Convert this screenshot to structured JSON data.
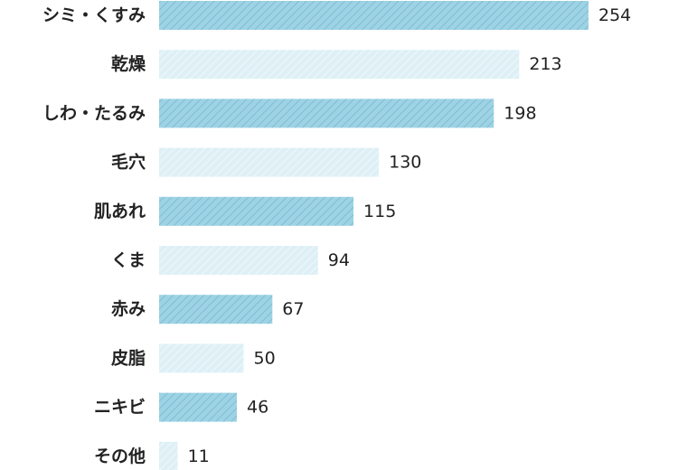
{
  "chart_data": {
    "type": "bar",
    "orientation": "horizontal",
    "categories": [
      "シミ・くすみ",
      "乾燥",
      "しわ・たるみ",
      "毛穴",
      "肌あれ",
      "くま",
      "赤み",
      "皮脂",
      "ニキビ",
      "その他"
    ],
    "values": [
      254,
      213,
      198,
      130,
      115,
      94,
      67,
      50,
      46,
      11
    ],
    "value_labels": [
      "254",
      "213",
      "198",
      "130",
      "115",
      "94",
      "67",
      "50",
      "46",
      "11"
    ],
    "xlim": [
      0,
      254
    ],
    "grid": false,
    "legend": "none",
    "colors": {
      "dark": "#9dd3e4",
      "dark_stripe": "#7fbdd2",
      "light": "#def0f6",
      "light_stripe": "#eef8fb",
      "text": "#222222"
    }
  }
}
